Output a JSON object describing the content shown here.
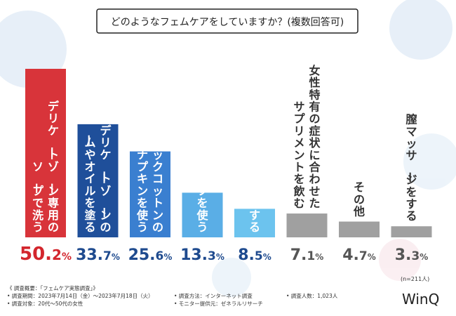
{
  "colors": {
    "top": "#d8343a",
    "dark_blue": "#1f4f9a",
    "mid_blue": "#3a7fd0",
    "light_blue": "#5aaee6",
    "sky": "#6cc3ee",
    "gray": "#a0a0a0",
    "red_text": "#d3262d",
    "blue_text": "#1e4a8e",
    "gray_text": "#555555"
  },
  "chart_data": {
    "type": "bar",
    "title": "どのようなフェムケアをしていますか？(複数回答可)",
    "categories": [
      "デリケートゾーン専用のソープで洗う",
      "デリケートゾーンの保湿クリームやオイルを塗る",
      "オーガニックコットンの生理ナプキンを使う",
      "月経用吸収ショーツを使う",
      "膣トレーニングをする",
      "女性特有の症状に合わせたサプリメントを飲む",
      "その他",
      "膣マッサージをする"
    ],
    "label_lines": [
      [
        "デリケートゾーン専用の",
        "ソープで洗う"
      ],
      [
        "デリケートゾーンの",
        "保湿クリームやオイルを塗る"
      ],
      [
        "オーガニックコットンの",
        "生理ナプキンを使う"
      ],
      [
        "月経用吸収ショーツを使う"
      ],
      [
        "膣トレーニングをする"
      ],
      [
        "女性特有の症状に合わせた",
        "サプリメントを飲む"
      ],
      [
        "その他"
      ],
      [
        "膣マッサージをする"
      ]
    ],
    "values": [
      50.2,
      33.7,
      25.6,
      13.3,
      8.5,
      7.1,
      4.7,
      3.3
    ],
    "value_labels": [
      {
        "int": "50.",
        "dec": "2",
        "pct": "%"
      },
      {
        "int": "33.",
        "dec": "7",
        "pct": "%"
      },
      {
        "int": "25.",
        "dec": "6",
        "pct": "%"
      },
      {
        "int": "13.",
        "dec": "3",
        "pct": "%"
      },
      {
        "int": "8.",
        "dec": "5",
        "pct": "%"
      },
      {
        "int": "7.",
        "dec": "1",
        "pct": "%"
      },
      {
        "int": "4.",
        "dec": "7",
        "pct": "%"
      },
      {
        "int": "3.",
        "dec": "3",
        "pct": "%"
      }
    ],
    "bar_colors": [
      "#d8343a",
      "#1f4f9a",
      "#3a7fd0",
      "#5aaee6",
      "#6cc3ee",
      "#a0a0a0",
      "#a0a0a0",
      "#a0a0a0"
    ],
    "value_colors": [
      "#d3262d",
      "#1e4a8e",
      "#1e4a8e",
      "#1e4a8e",
      "#1e4a8e",
      "#555555",
      "#555555",
      "#555555"
    ],
    "ylim": [
      0,
      55
    ],
    "xlabel": "",
    "ylabel": ""
  },
  "sample_note": "(n=211人)",
  "footer": {
    "overview": "《 調査概要：「フェムケア実態調査」》",
    "period": "• 調査期間：2023年7月14日（金）～2023年7月18日（火）",
    "target": "• 調査対象：20代～50代の女性",
    "method": "• 調査方法：インターネット調査",
    "monitor": "• モニター提供元：ゼネラルリサーチ",
    "count": "• 調査人数：1,023人"
  },
  "brand": "WinQ"
}
